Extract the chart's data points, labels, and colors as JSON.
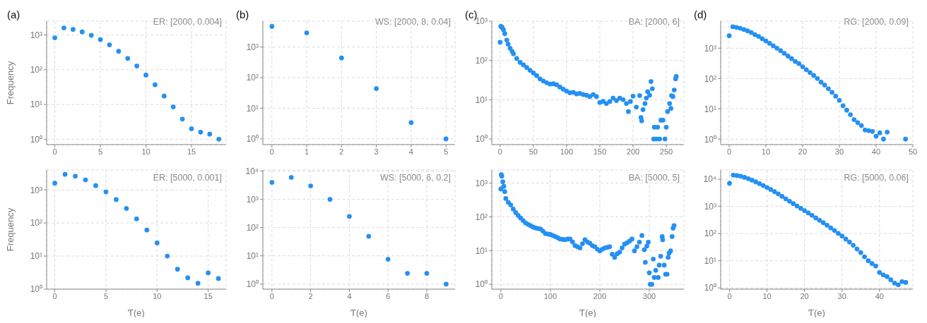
{
  "chart_data": [
    {
      "type": "scatter",
      "title": "(a)",
      "ylabel": "Frequency",
      "annotations": [
        "ER: [2000, 0.004]"
      ],
      "color": "#2590f2",
      "marker": "circle",
      "log": true,
      "grid": true,
      "xlim": [
        -0.9,
        18.8
      ],
      "ylim": [
        0.7,
        2500
      ],
      "xticks": [
        0,
        5,
        10,
        15
      ],
      "yticks": [
        {
          "value": 1,
          "label": "10⁰"
        },
        {
          "value": 10,
          "label": "10¹"
        },
        {
          "value": 100,
          "label": "10²"
        },
        {
          "value": 1000,
          "label": "10³"
        }
      ],
      "x": [
        0,
        1,
        2,
        3,
        4,
        5,
        6,
        7,
        8,
        9,
        10,
        11,
        12,
        13,
        14,
        15,
        16,
        17,
        18
      ],
      "values": [
        830,
        1600,
        1450,
        1230,
        980,
        740,
        520,
        340,
        212,
        128,
        70,
        37,
        17.5,
        8.5,
        3.8,
        2,
        1.6,
        1.4,
        1
      ]
    },
    {
      "type": "scatter",
      "title": "(b)",
      "annotations": [
        "WS: [2000, 8, 0.04]"
      ],
      "color": "#2590f2",
      "marker": "circle",
      "log": true,
      "grid": true,
      "xlim": [
        -0.26,
        5.26
      ],
      "ylim": [
        0.65,
        7000
      ],
      "xticks": [
        0,
        1,
        2,
        3,
        4,
        5
      ],
      "yticks": [
        {
          "value": 1,
          "label": "10⁰"
        },
        {
          "value": 10,
          "label": "10¹"
        },
        {
          "value": 100,
          "label": "10²"
        },
        {
          "value": 1000,
          "label": "10³"
        }
      ],
      "x": [
        0,
        1,
        2,
        3,
        4,
        5
      ],
      "values": [
        4700,
        2900,
        440,
        44,
        3.4,
        1
      ]
    },
    {
      "type": "scatter",
      "title": "(c)",
      "annotations": [
        "BA: [2000, 6]"
      ],
      "color": "#2590f2",
      "marker": "circle",
      "log": true,
      "grid": true,
      "xlim": [
        -12.6,
        276.6
      ],
      "ylim": [
        0.72,
        1000
      ],
      "xticks": [
        0,
        50,
        100,
        150,
        200,
        250
      ],
      "yticks": [
        {
          "value": 1,
          "label": "10⁰"
        },
        {
          "value": 10,
          "label": "10¹"
        },
        {
          "value": 100,
          "label": "10²"
        },
        {
          "value": 1000,
          "label": "10³"
        }
      ],
      "x": [
        0,
        1,
        2,
        3,
        5,
        7,
        10,
        12,
        15,
        18,
        20,
        25,
        30,
        35,
        40,
        45,
        50,
        55,
        60,
        65,
        70,
        75,
        80,
        85,
        90,
        95,
        100,
        105,
        110,
        115,
        120,
        125,
        130,
        135,
        140,
        145,
        150,
        155,
        160,
        165,
        170,
        175,
        180,
        185,
        190,
        193,
        196,
        200,
        205,
        210,
        212,
        213,
        215,
        218,
        220,
        222,
        225,
        227,
        229,
        231,
        232,
        235,
        237,
        240,
        242,
        245,
        248,
        250,
        252,
        255,
        257,
        258,
        260,
        262,
        264,
        265
      ],
      "values": [
        290,
        740,
        720,
        690,
        600,
        480,
        330,
        260,
        205,
        170,
        147,
        112,
        89,
        77,
        66,
        56,
        48,
        41,
        34,
        30,
        27,
        25,
        25.6,
        24,
        21,
        18.5,
        16.5,
        15,
        15.5,
        14,
        14.5,
        13.5,
        13,
        12,
        13.5,
        12,
        8.5,
        9.1,
        8,
        9,
        11,
        9.5,
        11,
        10,
        8,
        5,
        9,
        12.3,
        6.5,
        12.7,
        3.5,
        2.9,
        5.6,
        8,
        11,
        16,
        13,
        29,
        19,
        1,
        2,
        1,
        2,
        1,
        3,
        3,
        1,
        2,
        5,
        8,
        6,
        12.7,
        12,
        17.7,
        34,
        39
      ]
    },
    {
      "type": "scatter",
      "title": "(d)",
      "annotations": [
        "RG: [2000, 0.09]"
      ],
      "color": "#2590f2",
      "marker": "circle",
      "log": true,
      "grid": true,
      "xlim": [
        -2.3,
        50
      ],
      "ylim": [
        0.66,
        7800
      ],
      "xticks": [
        0,
        10,
        20,
        30,
        40,
        50
      ],
      "yticks": [
        {
          "value": 1,
          "label": "10⁰"
        },
        {
          "value": 10,
          "label": "10¹"
        },
        {
          "value": 100,
          "label": "10²"
        },
        {
          "value": 1000,
          "label": "10³"
        }
      ],
      "x": [
        0,
        1,
        2,
        3,
        4,
        5,
        6,
        7,
        8,
        9,
        10,
        11,
        12,
        13,
        14,
        15,
        16,
        17,
        18,
        19,
        20,
        21,
        22,
        23,
        24,
        25,
        26,
        27,
        28,
        29,
        30,
        31,
        32,
        33,
        34,
        35,
        36,
        37,
        38,
        39,
        40,
        41,
        42,
        43,
        48
      ],
      "values": [
        2570,
        5100,
        4850,
        4550,
        4150,
        3750,
        3300,
        2800,
        2450,
        2050,
        1730,
        1450,
        1200,
        1000,
        830,
        680,
        550,
        450,
        365,
        310,
        245,
        195,
        158,
        126,
        100,
        76,
        61,
        46,
        35,
        26,
        19,
        12.6,
        9,
        6.4,
        4.4,
        3.5,
        2.8,
        2,
        1.9,
        1.8,
        1.25,
        1.6,
        1,
        1.7,
        1
      ]
    },
    {
      "type": "scatter",
      "xlabel": "Ƭ(e)",
      "ylabel": "Frequency",
      "annotations": [
        "ER: [5000, 0.001]"
      ],
      "color": "#2590f2",
      "marker": "circle",
      "log": true,
      "grid": true,
      "xlim": [
        -0.8,
        16.75
      ],
      "ylim": [
        1,
        4000
      ],
      "xticks": [
        0,
        5,
        10,
        15
      ],
      "yticks": [
        {
          "value": 1,
          "label": "10⁰"
        },
        {
          "value": 10,
          "label": "10¹"
        },
        {
          "value": 100,
          "label": "10²"
        },
        {
          "value": 1000,
          "label": "10³"
        }
      ],
      "x": [
        0,
        1,
        2,
        3,
        4,
        5,
        6,
        7,
        8,
        9,
        10,
        11,
        12,
        13,
        14,
        15,
        16
      ],
      "values": [
        1600,
        2950,
        2600,
        2000,
        1350,
        870,
        510,
        275,
        133,
        61,
        25,
        10,
        4,
        2.2,
        1.5,
        3.1,
        2.1
      ]
    },
    {
      "type": "scatter",
      "xlabel": "Ƭ(e)",
      "annotations": [
        "WS: [5000, 6, 0.2]"
      ],
      "color": "#2590f2",
      "marker": "circle",
      "log": true,
      "grid": true,
      "xlim": [
        -0.47,
        9.46
      ],
      "ylim": [
        0.66,
        11000
      ],
      "xticks": [
        0,
        2,
        4,
        6,
        8
      ],
      "yticks": [
        {
          "value": 1,
          "label": "10⁰"
        },
        {
          "value": 10,
          "label": "10¹"
        },
        {
          "value": 100,
          "label": "10²"
        },
        {
          "value": 1000,
          "label": "10³"
        },
        {
          "value": 10000,
          "label": "10⁴"
        }
      ],
      "x": [
        0,
        1,
        2,
        3,
        4,
        5,
        6,
        7,
        8,
        9
      ],
      "values": [
        4000,
        6000,
        3000,
        1000,
        250,
        49,
        7.6,
        2.4,
        2.4,
        1
      ]
    },
    {
      "type": "scatter",
      "xlabel": "Ƭ(e)",
      "annotations": [
        "BA: [5000, 5]"
      ],
      "color": "#2590f2",
      "marker": "circle",
      "log": true,
      "grid": true,
      "xlim": [
        -18.3,
        370
      ],
      "ylim": [
        0.72,
        2450
      ],
      "xticks": [
        0,
        100,
        200,
        300
      ],
      "yticks": [
        {
          "value": 1,
          "label": "10⁰"
        },
        {
          "value": 10,
          "label": "10¹"
        },
        {
          "value": 100,
          "label": "10²"
        },
        {
          "value": 1000,
          "label": "10³"
        }
      ],
      "x": [
        0,
        1,
        2,
        4,
        6,
        8,
        10,
        15,
        20,
        25,
        30,
        35,
        40,
        45,
        50,
        55,
        60,
        65,
        70,
        75,
        80,
        85,
        90,
        95,
        100,
        105,
        110,
        115,
        120,
        125,
        130,
        135,
        140,
        145,
        150,
        155,
        160,
        165,
        170,
        175,
        180,
        185,
        190,
        195,
        200,
        205,
        210,
        215,
        220,
        225,
        230,
        235,
        240,
        245,
        250,
        255,
        260,
        265,
        270,
        275,
        280,
        285,
        290,
        292,
        295,
        298,
        300,
        302,
        305,
        308,
        310,
        313,
        318,
        320,
        323,
        326,
        327,
        330,
        333,
        336,
        338,
        340,
        343,
        346,
        348,
        350
      ],
      "values": [
        670,
        1780,
        1600,
        1100,
        800,
        560,
        350,
        270,
        225,
        170,
        134,
        110,
        92,
        78,
        66,
        60,
        55,
        50,
        47,
        45,
        44,
        38,
        32,
        31,
        30,
        28,
        26,
        24,
        22,
        21.5,
        21,
        22,
        22,
        18,
        14,
        13,
        12,
        16,
        21,
        18,
        16.5,
        14,
        13,
        11,
        9.8,
        11,
        12,
        12.5,
        13,
        7.8,
        6.3,
        8,
        9,
        12,
        15.5,
        17,
        19,
        22,
        9.8,
        13,
        17.8,
        28,
        10.6,
        4.5,
        13.6,
        17.8,
        2.2,
        1,
        1,
        5.6,
        1.6,
        2.6,
        1.6,
        3.7,
        6.8,
        26,
        21,
        3.7,
        2,
        2,
        6.3,
        8.4,
        9.8,
        26,
        46,
        55
      ]
    },
    {
      "type": "scatter",
      "xlabel": "Ƭ(e)",
      "annotations": [
        "RG: [5000, 0.06]"
      ],
      "color": "#2590f2",
      "marker": "circle",
      "log": true,
      "grid": true,
      "xlim": [
        -2.35,
        48.9
      ],
      "ylim": [
        0.9,
        22000
      ],
      "xticks": [
        0,
        10,
        20,
        30,
        40
      ],
      "yticks": [
        {
          "value": 1,
          "label": "10⁰"
        },
        {
          "value": 10,
          "label": "10¹"
        },
        {
          "value": 100,
          "label": "10²"
        },
        {
          "value": 1000,
          "label": "10³"
        },
        {
          "value": 10000,
          "label": "10⁴"
        }
      ],
      "x": [
        0,
        1,
        2,
        3,
        4,
        5,
        6,
        7,
        8,
        9,
        10,
        11,
        12,
        13,
        14,
        15,
        16,
        17,
        18,
        19,
        20,
        21,
        22,
        23,
        24,
        25,
        26,
        27,
        28,
        29,
        30,
        31,
        32,
        33,
        34,
        35,
        36,
        37,
        38,
        39,
        40,
        41,
        42,
        43,
        44,
        45,
        46,
        47
      ],
      "values": [
        7100,
        14200,
        13700,
        13000,
        11800,
        10500,
        9300,
        8000,
        6900,
        5900,
        5000,
        4200,
        3500,
        2900,
        2350,
        1900,
        1550,
        1270,
        1040,
        850,
        700,
        575,
        470,
        380,
        310,
        252,
        204,
        162,
        130,
        102,
        81,
        63,
        49,
        37,
        27,
        20,
        14,
        10,
        7.9,
        6.4,
        3.7,
        3,
        2.6,
        2,
        1.5,
        1.3,
        1.7,
        1.6
      ]
    }
  ]
}
